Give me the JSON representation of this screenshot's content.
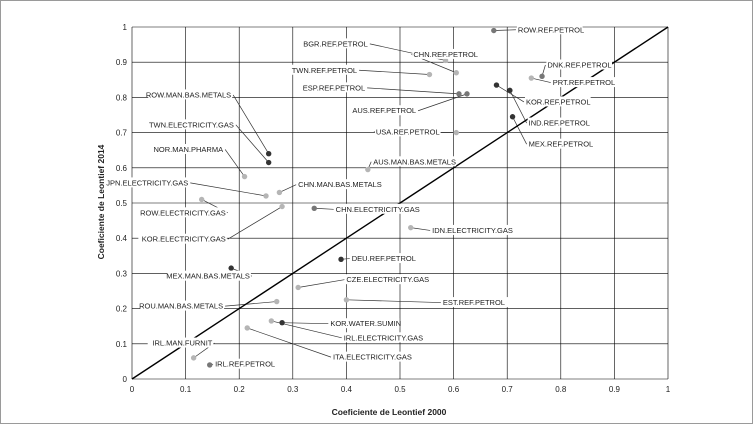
{
  "chart_data": {
    "type": "scatter",
    "xlabel": "Coeficiente de Leontief 2000",
    "ylabel": "Coeficiente de Leontief 2014",
    "xlim": [
      0,
      1
    ],
    "ylim": [
      0,
      1
    ],
    "xticks": [
      "0",
      "0.1",
      "0.2",
      "0.3",
      "0.4",
      "0.5",
      "0.6",
      "0.7",
      "0.8",
      "0.9",
      "1"
    ],
    "yticks": [
      "0",
      "0.1",
      "0.2",
      "0.3",
      "0.4",
      "0.5",
      "0.6",
      "0.7",
      "0.8",
      "0.9",
      "1"
    ],
    "grid": true,
    "reference_line": "y = x",
    "colors": {
      "dark": "#333333",
      "mid": "#777777",
      "light": "#b5b5b5",
      "line": "#000000",
      "grid": "#000000"
    },
    "points": [
      {
        "label": "ROW.REF.PETROL",
        "x": 0.675,
        "y": 0.99,
        "shade": "mid",
        "lx": 0.72,
        "ly": 0.985,
        "anchor": "start"
      },
      {
        "label": "BGR.REF.PETROL",
        "x": 0.585,
        "y": 0.905,
        "shade": "light",
        "lx": 0.44,
        "ly": 0.945,
        "anchor": "end"
      },
      {
        "label": "CHN.REF.PETROL",
        "x": 0.605,
        "y": 0.87,
        "shade": "light",
        "lx": 0.525,
        "ly": 0.915,
        "anchor": "start"
      },
      {
        "label": "TWN.REF.PETROL",
        "x": 0.555,
        "y": 0.865,
        "shade": "light",
        "lx": 0.42,
        "ly": 0.87,
        "anchor": "end"
      },
      {
        "label": "DNK.REF.PETROL",
        "x": 0.765,
        "y": 0.86,
        "shade": "mid",
        "lx": 0.775,
        "ly": 0.885,
        "anchor": "start"
      },
      {
        "label": "PRT.REF.PETROL",
        "x": 0.745,
        "y": 0.855,
        "shade": "light",
        "lx": 0.785,
        "ly": 0.835,
        "anchor": "start"
      },
      {
        "label": "KOR.REF.PETROL",
        "x": 0.68,
        "y": 0.835,
        "shade": "dark",
        "lx": 0.735,
        "ly": 0.78,
        "anchor": "start"
      },
      {
        "label": "IND.REF.PETROL",
        "x": 0.705,
        "y": 0.82,
        "shade": "dark",
        "lx": 0.74,
        "ly": 0.72,
        "anchor": "start"
      },
      {
        "label": "ESP.REF.PETROL",
        "x": 0.61,
        "y": 0.81,
        "shade": "mid",
        "lx": 0.435,
        "ly": 0.82,
        "anchor": "end"
      },
      {
        "label": "AUS.REF.PETROL",
        "x": 0.625,
        "y": 0.81,
        "shade": "mid",
        "lx": 0.53,
        "ly": 0.755,
        "anchor": "end"
      },
      {
        "label": "ROW.MAN.BAS.METALS",
        "x": 0.255,
        "y": 0.64,
        "shade": "dark",
        "lx": 0.185,
        "ly": 0.8,
        "anchor": "end"
      },
      {
        "label": "USA.REF.PETROL",
        "x": 0.605,
        "y": 0.7,
        "shade": "light",
        "lx": 0.455,
        "ly": 0.695,
        "anchor": "start"
      },
      {
        "label": "MEX.REF.PETROL",
        "x": 0.71,
        "y": 0.745,
        "shade": "dark",
        "lx": 0.74,
        "ly": 0.66,
        "anchor": "start"
      },
      {
        "label": "TWN.ELECTRICITY.GAS",
        "x": 0.255,
        "y": 0.615,
        "shade": "dark",
        "lx": 0.19,
        "ly": 0.715,
        "anchor": "end"
      },
      {
        "label": "NOR.MAN.PHARMA",
        "x": 0.21,
        "y": 0.575,
        "shade": "light",
        "lx": 0.17,
        "ly": 0.645,
        "anchor": "end"
      },
      {
        "label": "AUS.MAN.BAS.METALS",
        "x": 0.44,
        "y": 0.595,
        "shade": "light",
        "lx": 0.45,
        "ly": 0.61,
        "anchor": "start"
      },
      {
        "label": "JPN.ELECTRICITY.GAS",
        "x": 0.25,
        "y": 0.52,
        "shade": "light",
        "lx": 0.105,
        "ly": 0.55,
        "anchor": "end"
      },
      {
        "label": "CHN.MAN.BAS.METALS",
        "x": 0.275,
        "y": 0.53,
        "shade": "light",
        "lx": 0.31,
        "ly": 0.545,
        "anchor": "start"
      },
      {
        "label": "ROW.ELECTRICITY.GAS",
        "x": 0.13,
        "y": 0.51,
        "shade": "light",
        "lx": 0.175,
        "ly": 0.465,
        "anchor": "end"
      },
      {
        "label": "CHN.ELECTRICITY.GAS",
        "x": 0.34,
        "y": 0.485,
        "shade": "mid",
        "lx": 0.38,
        "ly": 0.475,
        "anchor": "start"
      },
      {
        "label": "KOR.ELECTRICITY.GAS",
        "x": 0.28,
        "y": 0.49,
        "shade": "light",
        "lx": 0.175,
        "ly": 0.39,
        "anchor": "end"
      },
      {
        "label": "IDN.ELECTRICITY.GAS",
        "x": 0.52,
        "y": 0.43,
        "shade": "light",
        "lx": 0.56,
        "ly": 0.415,
        "anchor": "start"
      },
      {
        "label": "DEU.REF.PETROL",
        "x": 0.39,
        "y": 0.34,
        "shade": "dark",
        "lx": 0.41,
        "ly": 0.335,
        "anchor": "start"
      },
      {
        "label": "MEX.MAN.BAS.METALS",
        "x": 0.185,
        "y": 0.315,
        "shade": "dark",
        "lx": 0.22,
        "ly": 0.285,
        "anchor": "end"
      },
      {
        "label": "CZE.ELECTRICITY.GAS",
        "x": 0.31,
        "y": 0.26,
        "shade": "light",
        "lx": 0.4,
        "ly": 0.275,
        "anchor": "start"
      },
      {
        "label": "EST.REF.PETROL",
        "x": 0.4,
        "y": 0.225,
        "shade": "light",
        "lx": 0.58,
        "ly": 0.21,
        "anchor": "start"
      },
      {
        "label": "ROU.MAN.BAS.METALS",
        "x": 0.27,
        "y": 0.22,
        "shade": "light",
        "lx": 0.17,
        "ly": 0.2,
        "anchor": "end"
      },
      {
        "label": "KOR.WATER.SUMIN",
        "x": 0.28,
        "y": 0.16,
        "shade": "dark",
        "lx": 0.37,
        "ly": 0.15,
        "anchor": "start"
      },
      {
        "label": "IRL.ELECTRICITY.GAS",
        "x": 0.26,
        "y": 0.165,
        "shade": "light",
        "lx": 0.395,
        "ly": 0.11,
        "anchor": "start"
      },
      {
        "label": "ITA.ELECTRICITY.GAS",
        "x": 0.215,
        "y": 0.145,
        "shade": "light",
        "lx": 0.375,
        "ly": 0.055,
        "anchor": "start"
      },
      {
        "label": "IRL.MAN.FURNIT",
        "x": 0.115,
        "y": 0.06,
        "shade": "light",
        "lx": 0.15,
        "ly": 0.095,
        "anchor": "end"
      },
      {
        "label": "IRL.REF.PETROL",
        "x": 0.145,
        "y": 0.04,
        "shade": "mid",
        "lx": 0.155,
        "ly": 0.035,
        "anchor": "start"
      }
    ]
  }
}
